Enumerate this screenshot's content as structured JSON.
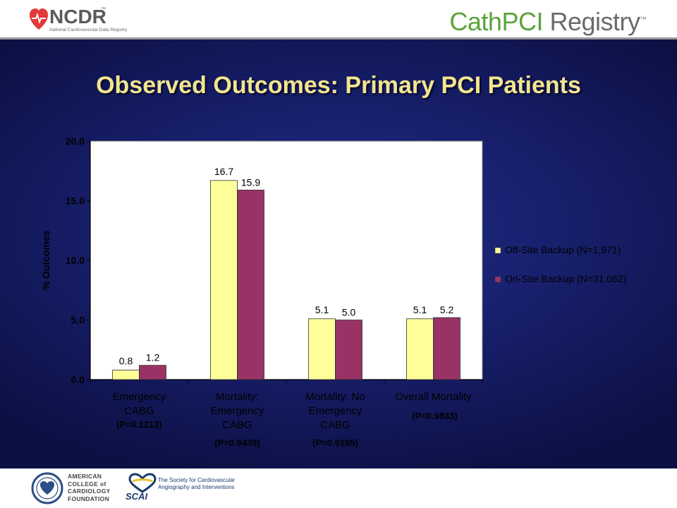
{
  "header": {
    "ncdr_logo_text": "NCDR",
    "ncdr_tm": "™",
    "ncdr_subtitle": "National Cardiovascular Data Registry",
    "registry_part1": "CathPCI",
    "registry_part2": " Registry",
    "registry_tm": "™"
  },
  "slide_title": "Observed Outcomes: Primary PCI Patients",
  "chart_data": {
    "type": "bar",
    "ylabel": "% Outcomes",
    "ylim": [
      0,
      20
    ],
    "yticks": [
      "0.0",
      "5.0",
      "10.0",
      "15.0",
      "20.0"
    ],
    "ytick_values": [
      0,
      5,
      10,
      15,
      20
    ],
    "grid": false,
    "legend_position": "right",
    "categories": [
      {
        "lines": [
          "Emergency",
          "CABG"
        ],
        "pvalue": "(P=0.1213)"
      },
      {
        "lines": [
          "Mortality:",
          "Emergency",
          "CABG"
        ],
        "pvalue": "(P=0.9439)"
      },
      {
        "lines": [
          "Mortality: No",
          "Emergency",
          "CABG"
        ],
        "pvalue": "(P=0.9195)"
      },
      {
        "lines": [
          "Overall Mortality"
        ],
        "pvalue": "(P=0.9833)"
      }
    ],
    "series": [
      {
        "name": "Off-Site Backup (N=1,971)",
        "color": "#ffff99",
        "values": [
          0.8,
          16.7,
          5.1,
          5.1
        ],
        "labels": [
          "0.8",
          "16.7",
          "5.1",
          "5.1"
        ]
      },
      {
        "name": "On-Site Backup (N=31,062)",
        "color": "#993366",
        "values": [
          1.2,
          15.9,
          5.0,
          5.2
        ],
        "labels": [
          "1.2",
          "15.9",
          "5.0",
          "5.2"
        ]
      }
    ]
  },
  "footer": {
    "acc_text": "AMERICAN\nCOLLEGE of\nCARDIOLOGY\nFOUNDATION",
    "scai_text": "The Society for Cardiovascular\nAngiography and Interventions",
    "scai_word": "SCAI"
  }
}
